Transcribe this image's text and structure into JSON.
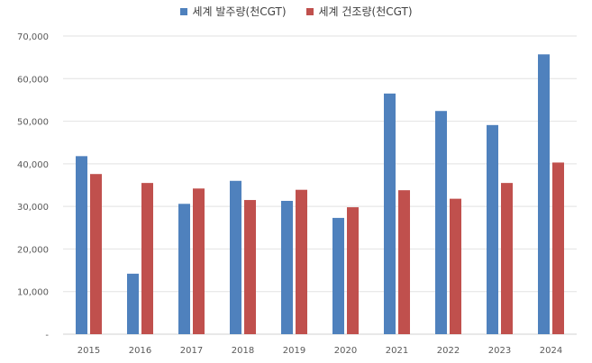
{
  "chart_data": {
    "type": "bar",
    "categories": [
      "2015",
      "2016",
      "2017",
      "2018",
      "2019",
      "2020",
      "2021",
      "2022",
      "2023",
      "2024"
    ],
    "series": [
      {
        "name": "세계 발주량(천CGT)",
        "color": "#4f81bd",
        "values": [
          41800,
          14200,
          30600,
          36000,
          31300,
          27300,
          56500,
          52400,
          49100,
          65700
        ]
      },
      {
        "name": "세계 건조량(천CGT)",
        "color": "#c0504d",
        "values": [
          37600,
          35500,
          34200,
          31500,
          33900,
          29800,
          33800,
          31800,
          35500,
          40300
        ]
      }
    ],
    "ylim": [
      0,
      70000
    ],
    "yticks": [
      0,
      10000,
      20000,
      30000,
      40000,
      50000,
      60000,
      70000
    ],
    "ytick_labels": [
      "-",
      "10,000",
      "20,000",
      "30,000",
      "40,000",
      "50,000",
      "60,000",
      "70,000"
    ],
    "grid": true,
    "legend_position": "top-center",
    "title": "",
    "xlabel": "",
    "ylabel": ""
  }
}
